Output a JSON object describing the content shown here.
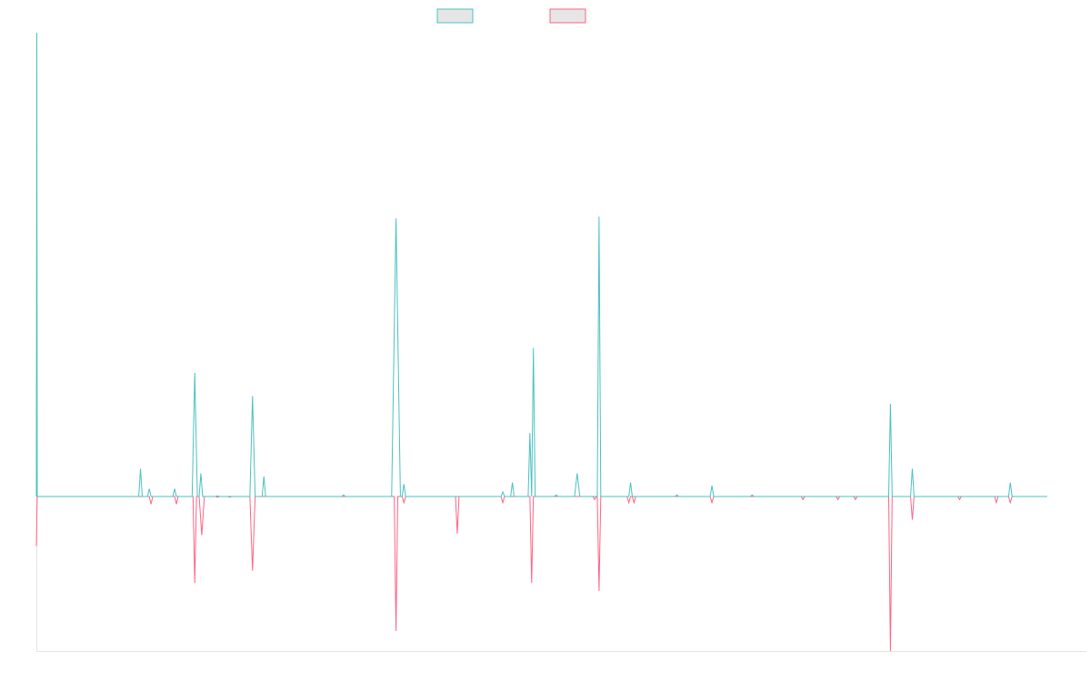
{
  "chart_data": {
    "type": "line",
    "title": "",
    "xlabel": "",
    "ylabel": "",
    "grid": false,
    "legend": "top-center",
    "x_range": [
      0,
      1200
    ],
    "ylim": [
      -100,
      300
    ],
    "series": [
      {
        "color": "#4bc0c0",
        "points": [
          [
            0,
            0
          ],
          [
            0.5,
            300
          ],
          [
            1,
            0
          ],
          [
            117,
            0
          ],
          [
            119,
            18
          ],
          [
            121,
            0
          ],
          [
            127,
            0
          ],
          [
            129,
            5
          ],
          [
            131,
            0
          ],
          [
            156,
            0
          ],
          [
            158,
            5
          ],
          [
            160,
            0
          ],
          [
            178,
            0
          ],
          [
            181,
            80
          ],
          [
            184,
            0
          ],
          [
            186,
            0
          ],
          [
            188,
            15
          ],
          [
            190,
            0
          ],
          [
            205,
            0
          ],
          [
            207,
            0.5
          ],
          [
            209,
            0
          ],
          [
            244,
            0
          ],
          [
            247,
            65
          ],
          [
            250,
            0
          ],
          [
            258,
            0
          ],
          [
            260,
            13
          ],
          [
            262,
            0
          ],
          [
            349,
            0
          ],
          [
            351,
            1
          ],
          [
            353,
            0
          ],
          [
            406,
            0
          ],
          [
            411,
            180
          ],
          [
            416,
            0
          ],
          [
            418,
            0
          ],
          [
            420,
            8
          ],
          [
            422,
            0
          ],
          [
            531,
            0
          ],
          [
            533,
            3
          ],
          [
            535,
            0
          ],
          [
            542,
            0
          ],
          [
            544,
            9
          ],
          [
            546,
            0
          ],
          [
            562,
            0
          ],
          [
            564,
            41
          ],
          [
            566,
            0
          ],
          [
            568,
            96
          ],
          [
            570,
            0
          ],
          [
            592,
            0
          ],
          [
            594,
            1
          ],
          [
            596,
            0
          ],
          [
            615,
            0
          ],
          [
            618,
            15
          ],
          [
            621,
            0
          ],
          [
            641,
            0
          ],
          [
            643,
            181
          ],
          [
            645,
            0
          ],
          [
            677,
            0
          ],
          [
            679,
            9
          ],
          [
            681,
            0
          ],
          [
            730,
            0
          ],
          [
            732,
            1
          ],
          [
            734,
            0
          ],
          [
            770,
            0
          ],
          [
            772,
            7
          ],
          [
            774,
            0
          ],
          [
            816,
            0
          ],
          [
            818,
            1
          ],
          [
            820,
            0
          ],
          [
            974,
            0
          ],
          [
            976,
            60
          ],
          [
            978,
            0
          ],
          [
            999,
            0
          ],
          [
            1001,
            18
          ],
          [
            1003,
            0
          ],
          [
            1111,
            0
          ],
          [
            1113,
            9
          ],
          [
            1115,
            0
          ],
          [
            1155,
            0
          ]
        ]
      },
      {
        "color": "#ff6384",
        "points": [
          [
            0,
            -32
          ],
          [
            1,
            0
          ],
          [
            119,
            0
          ],
          [
            121,
            0
          ],
          [
            129,
            0
          ],
          [
            131,
            -5
          ],
          [
            133,
            0
          ],
          [
            158,
            0
          ],
          [
            160,
            -5
          ],
          [
            162,
            0
          ],
          [
            179,
            0
          ],
          [
            181,
            -56
          ],
          [
            183,
            0
          ],
          [
            186,
            0
          ],
          [
            189,
            -25
          ],
          [
            192,
            0
          ],
          [
            205,
            0
          ],
          [
            207,
            -0.5
          ],
          [
            209,
            0
          ],
          [
            219,
            0
          ],
          [
            221,
            -0.5
          ],
          [
            223,
            0
          ],
          [
            244,
            0
          ],
          [
            247,
            -48
          ],
          [
            250,
            0
          ],
          [
            409,
            0
          ],
          [
            411,
            -87
          ],
          [
            413,
            0
          ],
          [
            418,
            0
          ],
          [
            420,
            -4
          ],
          [
            422,
            0
          ],
          [
            479,
            0
          ],
          [
            481,
            -24
          ],
          [
            483,
            0
          ],
          [
            531,
            0
          ],
          [
            533,
            -4
          ],
          [
            535,
            0
          ],
          [
            564,
            0
          ],
          [
            566,
            -56
          ],
          [
            568,
            0
          ],
          [
            636,
            0
          ],
          [
            638,
            -2
          ],
          [
            640,
            0
          ],
          [
            641,
            0
          ],
          [
            643,
            -61
          ],
          [
            645,
            0
          ],
          [
            675,
            0
          ],
          [
            677,
            -4
          ],
          [
            679,
            0
          ],
          [
            681,
            0
          ],
          [
            683,
            -4
          ],
          [
            685,
            0
          ],
          [
            770,
            0
          ],
          [
            772,
            -4
          ],
          [
            774,
            0
          ],
          [
            874,
            0
          ],
          [
            876,
            -2
          ],
          [
            878,
            0
          ],
          [
            914,
            0
          ],
          [
            916,
            -2
          ],
          [
            918,
            0
          ],
          [
            934,
            0
          ],
          [
            936,
            -2
          ],
          [
            938,
            0
          ],
          [
            974,
            0
          ],
          [
            976,
            -100
          ],
          [
            978,
            0
          ],
          [
            999,
            0
          ],
          [
            1001,
            -15
          ],
          [
            1003,
            0
          ],
          [
            1053,
            0
          ],
          [
            1055,
            -2
          ],
          [
            1057,
            0
          ],
          [
            1095,
            0
          ],
          [
            1097,
            -4
          ],
          [
            1099,
            0
          ],
          [
            1111,
            0
          ],
          [
            1113,
            -4
          ],
          [
            1115,
            0
          ],
          [
            1155,
            0
          ]
        ]
      }
    ]
  }
}
